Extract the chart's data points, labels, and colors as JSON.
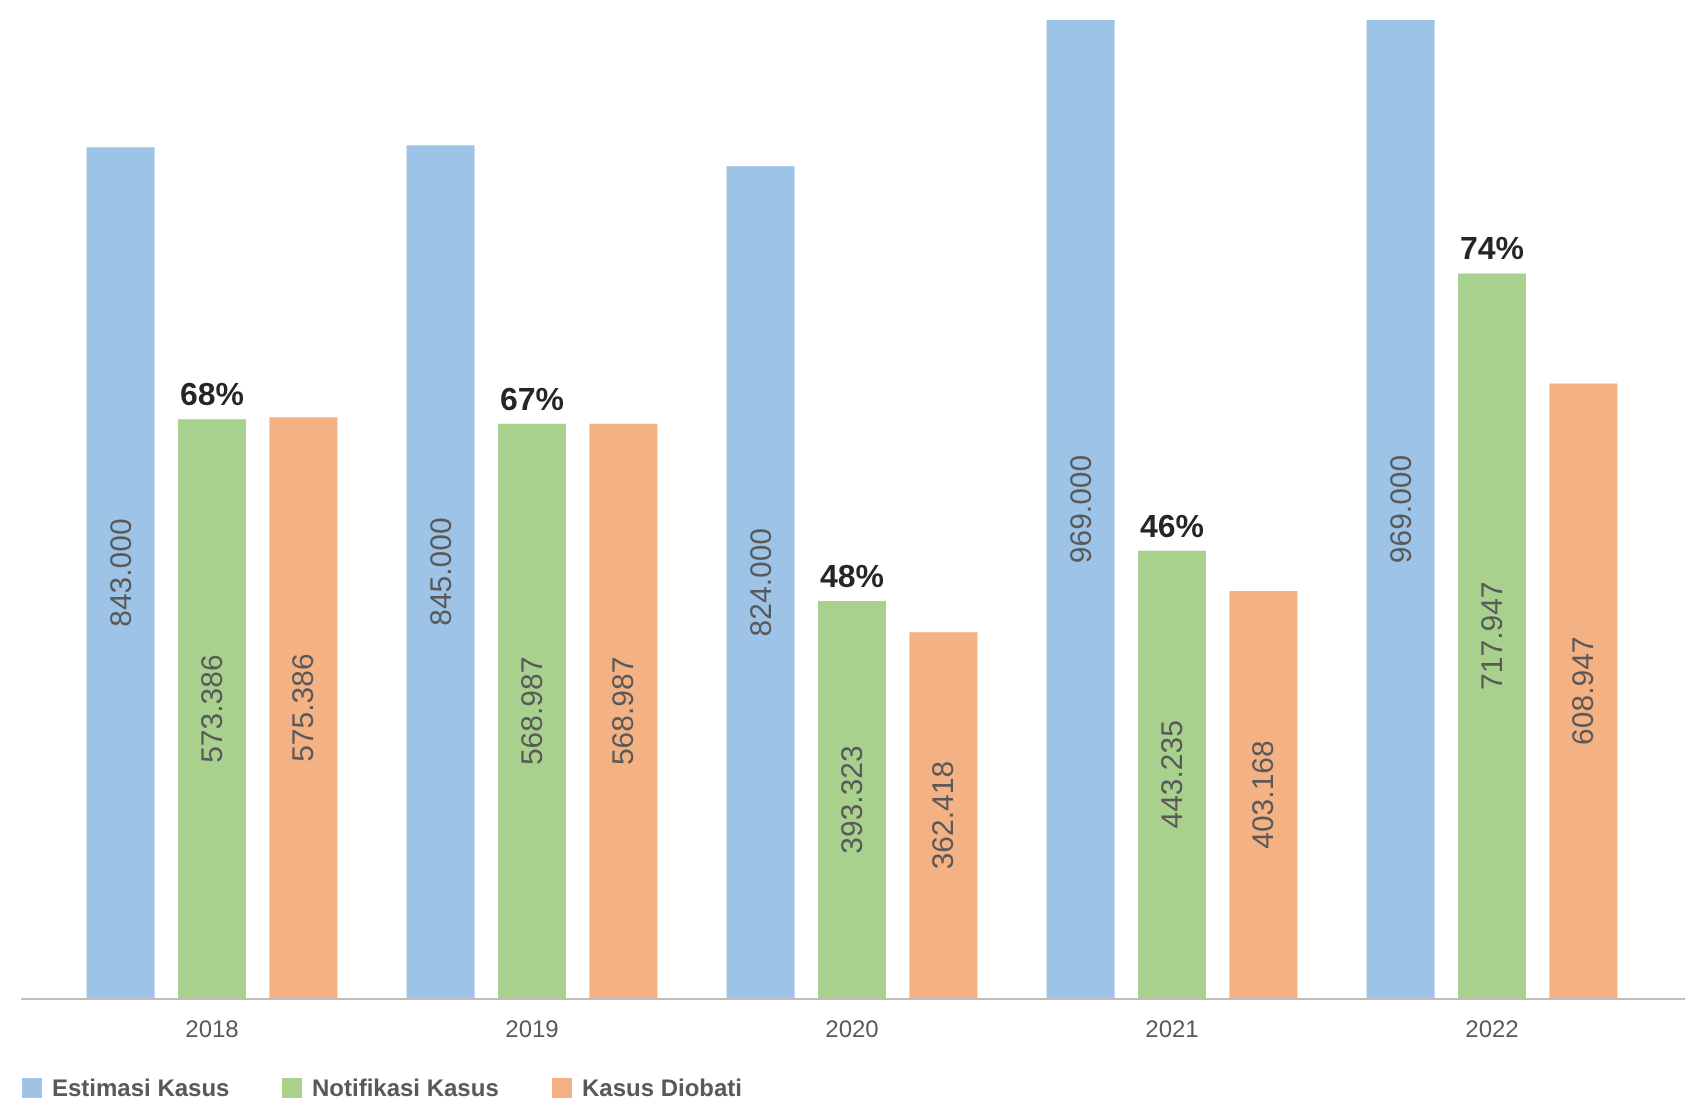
{
  "chart_data": {
    "type": "bar",
    "categories": [
      "2018",
      "2019",
      "2020",
      "2021",
      "2022"
    ],
    "series": [
      {
        "name": "Estimasi Kasus",
        "color": "#9dc3e6",
        "values": [
          843000,
          845000,
          824000,
          969000,
          969000
        ],
        "value_labels": [
          "843.000",
          "845.000",
          "824.000",
          "969.000",
          "969.000"
        ]
      },
      {
        "name": "Notifikasi Kasus",
        "color": "#a9d18e",
        "values": [
          573386,
          568987,
          393323,
          443235,
          717947
        ],
        "value_labels": [
          "573.386",
          "568.987",
          "393.323",
          "443.235",
          "717.947"
        ]
      },
      {
        "name": "Kasus Diobati",
        "color": "#f4b183",
        "values": [
          575386,
          568987,
          362418,
          403168,
          608947
        ],
        "value_labels": [
          "575.386",
          "568.987",
          "362.418",
          "403.168",
          "608.947"
        ]
      }
    ],
    "annotations": [
      {
        "text": "68%",
        "x": "2018",
        "y": 573386
      },
      {
        "text": "67%",
        "x": "2019",
        "y": 568987
      },
      {
        "text": "48%",
        "x": "2020",
        "y": 393323
      },
      {
        "text": "46%",
        "x": "2021",
        "y": 443235
      },
      {
        "text": "74%",
        "x": "2022",
        "y": 717947
      }
    ],
    "legend": "bottom",
    "grid": false,
    "tick_labels": "x"
  }
}
